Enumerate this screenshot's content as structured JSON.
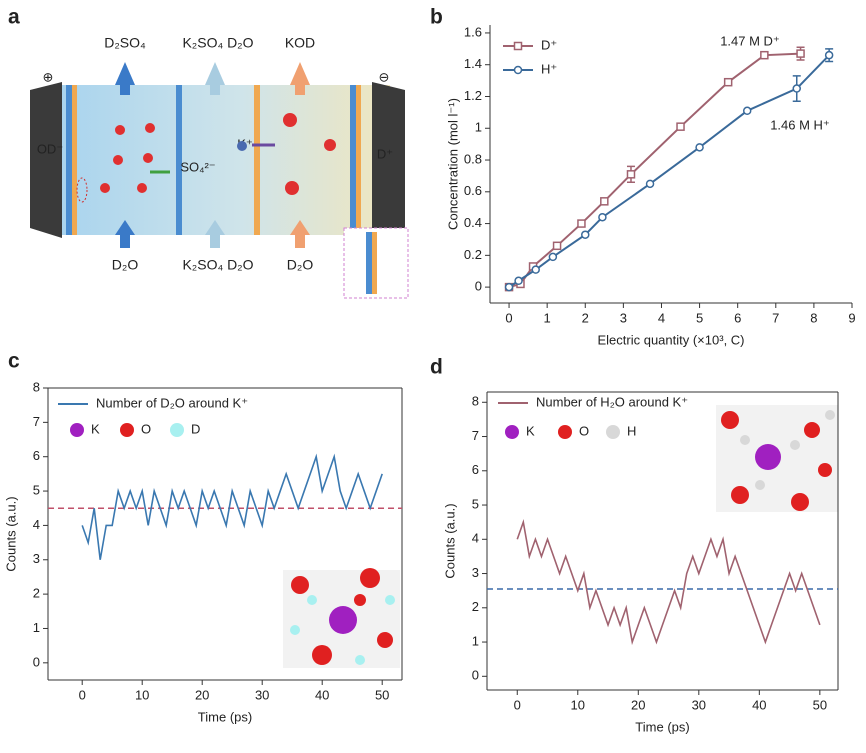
{
  "diagram": {
    "label": "a",
    "top_labels": [
      "D₂SO₄",
      "K₂SO₄ D₂O",
      "KOD"
    ],
    "bottom_labels": [
      "D₂O",
      "K₂SO₄ D₂O",
      "D₂O"
    ],
    "ions": [
      "K⁺",
      "SO₄²⁻",
      "OD⁻",
      "D⁺"
    ],
    "electrodes": [
      "⊕",
      "⊖"
    ]
  },
  "chart_data": [
    {
      "type": "line",
      "label": "b",
      "xlabel": "Electric quantity (×10³, C)",
      "ylabel": "Concentration (mol l⁻¹)",
      "xlim": [
        -0.5,
        9
      ],
      "ylim": [
        -0.1,
        1.65
      ],
      "xticks": [
        0,
        1,
        2,
        3,
        4,
        5,
        6,
        7,
        8,
        9
      ],
      "yticks": [
        0,
        0.2,
        0.4,
        0.6,
        0.8,
        1.0,
        1.2,
        1.4,
        1.6
      ],
      "legend": "upper left",
      "annotations": [
        "1.47 M D⁺",
        "1.46 M H⁺"
      ],
      "series": [
        {
          "name": "D⁺",
          "color": "#a0626f",
          "marker": "square",
          "x": [
            0,
            0.3,
            0.63,
            1.26,
            1.9,
            2.5,
            3.2,
            4.5,
            5.75,
            6.7,
            7.65
          ],
          "values": [
            0,
            0.02,
            0.13,
            0.26,
            0.4,
            0.54,
            0.71,
            1.01,
            1.29,
            1.46,
            1.47
          ],
          "errors": [
            null,
            null,
            null,
            null,
            null,
            null,
            0.05,
            null,
            null,
            null,
            0.04
          ]
        },
        {
          "name": "H⁺",
          "color": "#3a6a9a",
          "marker": "circle",
          "x": [
            0,
            0.25,
            0.7,
            1.15,
            2,
            2.45,
            3.7,
            5,
            6.25,
            7.55,
            8.4
          ],
          "values": [
            0,
            0.04,
            0.11,
            0.19,
            0.33,
            0.44,
            0.65,
            0.88,
            1.11,
            1.25,
            1.46
          ],
          "errors": [
            null,
            null,
            null,
            null,
            null,
            null,
            null,
            null,
            null,
            0.08,
            0.04
          ]
        }
      ]
    },
    {
      "type": "line",
      "label": "c",
      "xlabel": "Time (ps)",
      "ylabel": "Counts (a.u.)",
      "xlim": [
        -5.7,
        53.3
      ],
      "ylim": [
        -0.5,
        8
      ],
      "xticks": [
        0,
        10,
        20,
        30,
        40,
        50
      ],
      "yticks": [
        0,
        1,
        2,
        3,
        4,
        5,
        6,
        7,
        8
      ],
      "mean_line": {
        "value": 4.5,
        "color": "#c0506a"
      },
      "atoms": [
        {
          "name": "K",
          "color": "#a020c0"
        },
        {
          "name": "O",
          "color": "#e02020"
        },
        {
          "name": "D",
          "color": "#a8f0f0"
        }
      ],
      "x": [
        0,
        1,
        2,
        3,
        4,
        5,
        6,
        7,
        8,
        9,
        10,
        11,
        12,
        13,
        14,
        15,
        16,
        17,
        18,
        19,
        20,
        21,
        22,
        23,
        24,
        25,
        26,
        27,
        28,
        29,
        30,
        31,
        32,
        33,
        34,
        35,
        36,
        37,
        38,
        39,
        40,
        41,
        42,
        43,
        44,
        45,
        46,
        47,
        48,
        49,
        50
      ],
      "series": [
        {
          "name": "Number of D₂O around K⁺",
          "color": "#3a78b0",
          "values": [
            4,
            3.5,
            4.5,
            3,
            4,
            4,
            5,
            4.5,
            5,
            4.5,
            5,
            4,
            5,
            4.5,
            4,
            5,
            4.5,
            5,
            4.5,
            4,
            5,
            4.5,
            5,
            4.5,
            4,
            5,
            4.5,
            4,
            5,
            4.5,
            4,
            5,
            4.5,
            5,
            5.5,
            5,
            4.5,
            5,
            5.5,
            6,
            5,
            5.5,
            6,
            5,
            4.5,
            5,
            5.5,
            5,
            4.5,
            5,
            5.5
          ]
        }
      ]
    },
    {
      "type": "line",
      "label": "d",
      "xlabel": "Time (ps)",
      "ylabel": "Counts (a.u.)",
      "xlim": [
        -5,
        53
      ],
      "ylim": [
        -0.4,
        8.3
      ],
      "xticks": [
        0,
        10,
        20,
        30,
        40,
        50
      ],
      "yticks": [
        0,
        1,
        2,
        3,
        4,
        5,
        6,
        7,
        8
      ],
      "mean_line": {
        "value": 2.55,
        "color": "#3a6aa8"
      },
      "atoms": [
        {
          "name": "K",
          "color": "#a020c0"
        },
        {
          "name": "O",
          "color": "#e02020"
        },
        {
          "name": "H",
          "color": "#d8d8d8"
        }
      ],
      "x": [
        0,
        1,
        2,
        3,
        4,
        5,
        6,
        7,
        8,
        9,
        10,
        11,
        12,
        13,
        14,
        15,
        16,
        17,
        18,
        19,
        20,
        21,
        22,
        23,
        24,
        25,
        26,
        27,
        28,
        29,
        30,
        31,
        32,
        33,
        34,
        35,
        36,
        37,
        38,
        39,
        40,
        41,
        42,
        43,
        44,
        45,
        46,
        47,
        48,
        49,
        50
      ],
      "series": [
        {
          "name": "Number of H₂O around K⁺",
          "color": "#a0626f",
          "values": [
            4,
            4.5,
            3.5,
            4,
            3.5,
            4,
            3.5,
            3,
            3.5,
            3,
            2.5,
            3,
            2,
            2.5,
            2,
            1.5,
            2,
            1.5,
            2,
            1,
            1.5,
            2,
            1.5,
            1,
            1.5,
            2,
            2.5,
            2,
            3,
            3.5,
            3,
            3.5,
            4,
            3.5,
            4,
            3,
            3.5,
            3,
            2.5,
            2,
            1.5,
            1,
            1.5,
            2,
            2.5,
            3,
            2.5,
            3,
            2.5,
            2,
            1.5
          ]
        }
      ]
    }
  ]
}
